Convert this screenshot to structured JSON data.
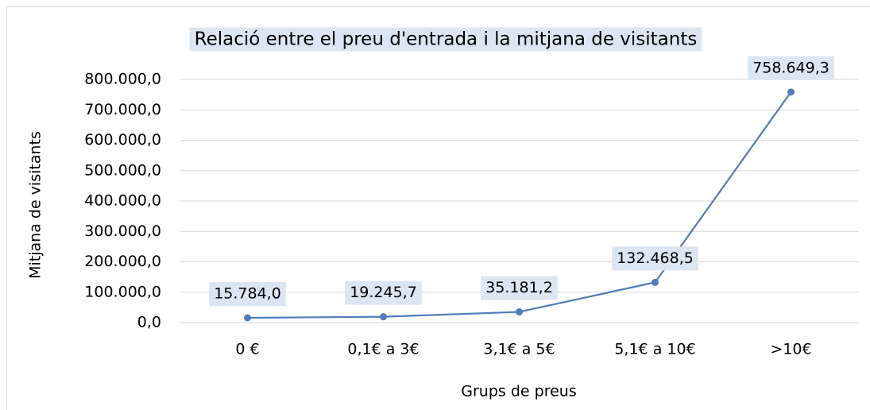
{
  "chart_data": {
    "type": "line",
    "title": "Relació entre el preu d'entrada i la mitjana de visitants",
    "x_label": "Grups de preus",
    "y_label": "Mitjana de visitants",
    "categories": [
      "0 €",
      "0,1€ a 3€",
      "3,1€ a 5€",
      "5,1€ a 10€",
      ">10€"
    ],
    "values": [
      15784.0,
      19245.7,
      35181.2,
      132468.5,
      758649.3
    ],
    "value_labels": [
      "15.784,0",
      "19.245,7",
      "35.181,2",
      "132.468,5",
      "758.649,3"
    ],
    "color": "#4f7cba",
    "ylim": [
      0,
      800000
    ],
    "yticks": [
      {
        "value": 0,
        "label": "0,0"
      },
      {
        "value": 100000,
        "label": "100.000,0"
      },
      {
        "value": 200000,
        "label": "200.000,0"
      },
      {
        "value": 300000,
        "label": "300.000,0"
      },
      {
        "value": 400000,
        "label": "400.000,0"
      },
      {
        "value": 500000,
        "label": "500.000,0"
      },
      {
        "value": 600000,
        "label": "600.000,0"
      },
      {
        "value": 700000,
        "label": "700.000,0"
      },
      {
        "value": 800000,
        "label": "800.000,0"
      }
    ],
    "grid": true
  }
}
